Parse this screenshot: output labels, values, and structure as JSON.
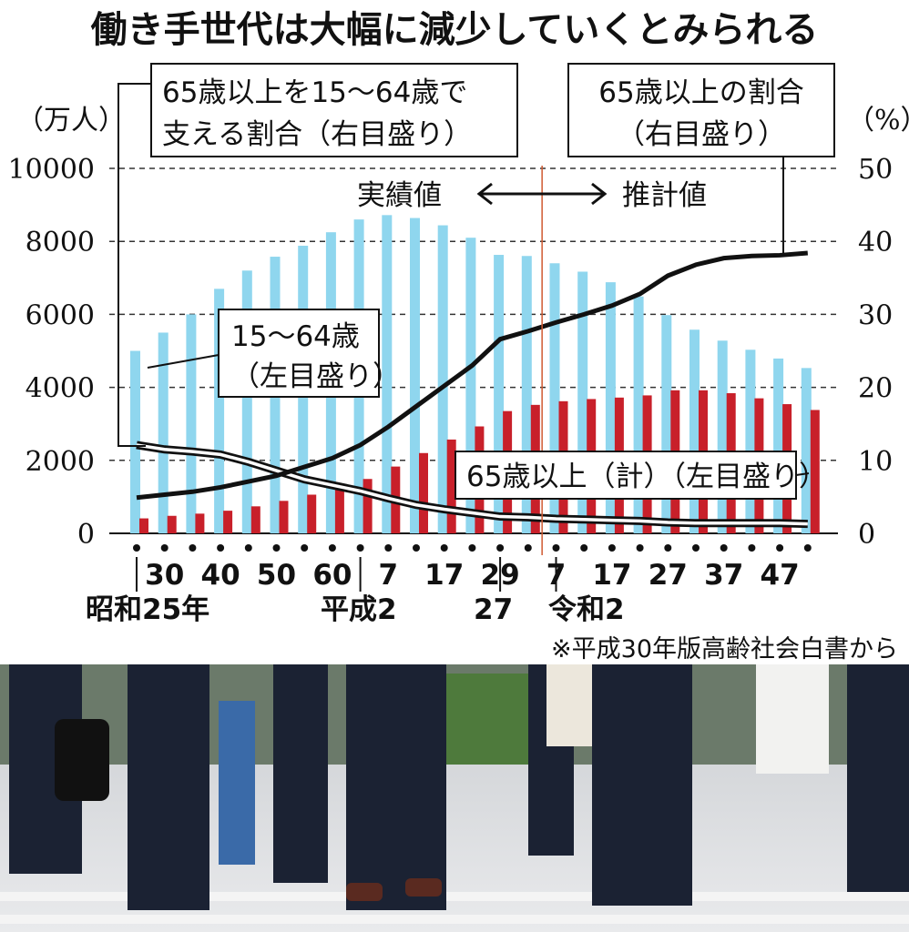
{
  "title": "働き手世代は大幅に減少していくとみられる",
  "left_unit": "（万人）",
  "right_unit": "（%）",
  "annotations": {
    "ratio_support_line1": "65歳以上を15～64歳で",
    "ratio_support_line2": "支える割合（右目盛り）",
    "ratio_elderly_line1": "65歳以上の割合",
    "ratio_elderly_line2": "（右目盛り）",
    "actual": "実績値",
    "estimate": "推計値",
    "working_line1": "15～64歳",
    "working_line2": "（左目盛り）",
    "elderly_total": "65歳以上（計）（左目盛り）"
  },
  "era_labels": {
    "showa": "昭和25年",
    "heisei": "平成2",
    "heisei27": "27",
    "reiwa": "令和2"
  },
  "source": "※平成30年版高齢社会白書から",
  "colors": {
    "working_bar": "#8fd6ee",
    "elderly_bar": "#c8202a",
    "line": "#111111",
    "divider": "#d05a30"
  },
  "chart_data": {
    "type": "bar",
    "x_tick_labels": [
      "30",
      "40",
      "50",
      "60",
      "7",
      "17",
      "29",
      "7",
      "17",
      "27",
      "37",
      "47"
    ],
    "x": [
      1950,
      1955,
      1960,
      1965,
      1970,
      1975,
      1980,
      1985,
      1990,
      1995,
      2000,
      2005,
      2010,
      2015,
      2017,
      2020,
      2025,
      2030,
      2035,
      2040,
      2045,
      2050,
      2055,
      2060,
      2065
    ],
    "series": [
      {
        "name": "15～64歳",
        "axis": "left",
        "values": [
          5000,
          5500,
          6000,
          6700,
          7200,
          7580,
          7880,
          8250,
          8600,
          8720,
          8640,
          8440,
          8100,
          7630,
          7600,
          7400,
          7170,
          6880,
          6490,
          5980,
          5580,
          5280,
          5030,
          4790,
          4530
        ]
      },
      {
        "name": "65歳以上（計）",
        "axis": "left",
        "values": [
          410,
          480,
          540,
          620,
          740,
          890,
          1060,
          1250,
          1490,
          1830,
          2200,
          2570,
          2930,
          3350,
          3520,
          3620,
          3680,
          3720,
          3780,
          3920,
          3920,
          3840,
          3700,
          3540,
          3380
        ]
      },
      {
        "name": "65歳以上の割合",
        "axis": "right",
        "values": [
          4.9,
          5.3,
          5.7,
          6.3,
          7.1,
          7.9,
          9.1,
          10.3,
          12.1,
          14.6,
          17.4,
          20.2,
          23.0,
          26.6,
          27.7,
          28.9,
          30.0,
          31.2,
          32.8,
          35.3,
          36.8,
          37.7,
          38.0,
          38.1,
          38.4
        ]
      },
      {
        "name": "65歳以上を15～64歳で支える割合",
        "axis": "right",
        "values": [
          12.1,
          11.5,
          11.2,
          10.8,
          9.8,
          8.6,
          7.4,
          6.6,
          5.8,
          4.8,
          3.9,
          3.3,
          2.8,
          2.3,
          2.2,
          2.0,
          1.9,
          1.8,
          1.7,
          1.5,
          1.4,
          1.4,
          1.4,
          1.4,
          1.3
        ]
      }
    ],
    "left_axis": {
      "ticks": [
        "0",
        "2000",
        "4000",
        "6000",
        "8000",
        "10000"
      ],
      "ylim": [
        0,
        10000
      ]
    },
    "right_axis": {
      "ticks": [
        "0",
        "10",
        "20",
        "30",
        "40",
        "50"
      ],
      "ylim": [
        0,
        50
      ]
    },
    "divider_after_index": 14,
    "grid": "dashed horizontal"
  }
}
